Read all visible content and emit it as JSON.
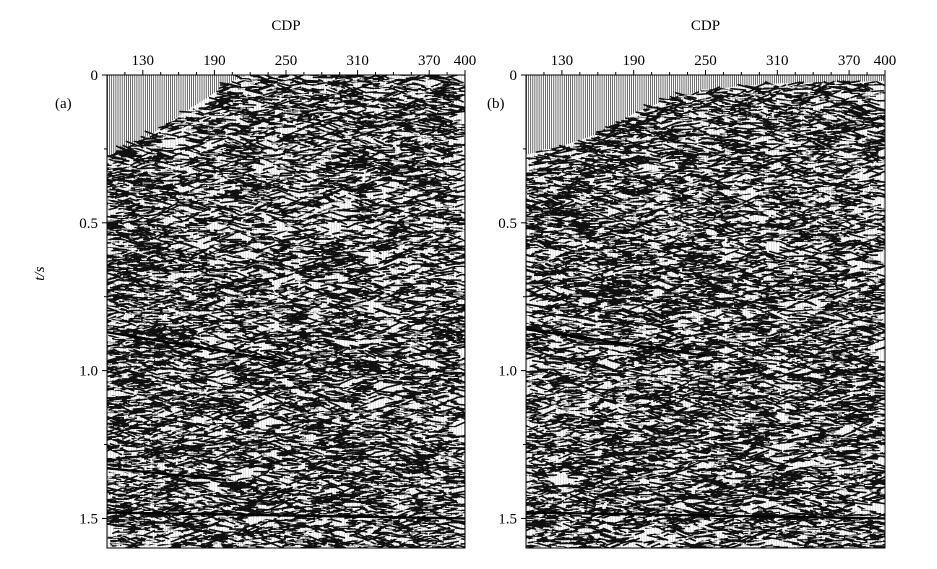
{
  "chart_data": [
    {
      "type": "heatmap",
      "panel_label": "(a)",
      "xlabel": "CDP",
      "ylabel": "t/s",
      "xticks": [
        "130",
        "190",
        "250",
        "310",
        "370",
        "400"
      ],
      "xtick_values": [
        130,
        190,
        250,
        310,
        370,
        400
      ],
      "xlim": [
        100,
        400
      ],
      "yticks": [
        "0",
        "0.5",
        "1.0",
        "1.5"
      ],
      "ytick_values": [
        0,
        0.5,
        1.0,
        1.5
      ],
      "ylim": [
        0,
        1.6
      ],
      "y_axis": "inverted",
      "mute_boundary": {
        "cdp": [
          100,
          130,
          160,
          190,
          205,
          220,
          400
        ],
        "t": [
          0.28,
          0.22,
          0.14,
          0.06,
          0.02,
          0.0,
          0.0
        ]
      },
      "reflectors": [
        {
          "cdp": [
            100,
            250
          ],
          "t": [
            0.87,
            0.97
          ]
        },
        {
          "cdp": [
            100,
            200
          ],
          "t": [
            1.33,
            1.37
          ]
        },
        {
          "cdp": [
            100,
            400
          ],
          "t": [
            1.48,
            1.5
          ]
        }
      ]
    },
    {
      "type": "heatmap",
      "panel_label": "(b)",
      "xlabel": "CDP",
      "ylabel": "",
      "xticks": [
        "130",
        "190",
        "250",
        "310",
        "370",
        "400"
      ],
      "xtick_values": [
        130,
        190,
        250,
        310,
        370,
        400
      ],
      "xlim": [
        100,
        400
      ],
      "yticks": [
        "0",
        "0.5",
        "1.0",
        "1.5"
      ],
      "ytick_values": [
        0,
        0.5,
        1.0,
        1.5
      ],
      "ylim": [
        0,
        1.6
      ],
      "y_axis": "inverted",
      "mute_boundary": {
        "cdp": [
          100,
          130,
          160,
          190,
          220,
          250,
          300,
          400
        ],
        "t": [
          0.27,
          0.24,
          0.2,
          0.13,
          0.08,
          0.05,
          0.03,
          0.02
        ]
      },
      "reflectors": [
        {
          "cdp": [
            100,
            250
          ],
          "t": [
            0.86,
            0.95
          ]
        },
        {
          "cdp": [
            100,
            400
          ],
          "t": [
            1.48,
            1.5
          ]
        }
      ]
    }
  ],
  "colors": {
    "background": "#ffffff",
    "trace_dark": "#000000",
    "trace_light": "#ffffff",
    "noise_mid": "#3c3c3c"
  }
}
